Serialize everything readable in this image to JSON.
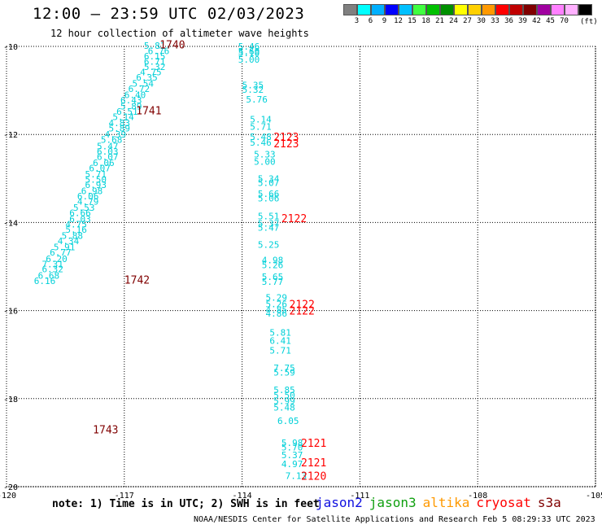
{
  "header": {
    "title": "12:00 — 23:59 UTC 02/03/2023",
    "subtitle": "12 hour collection of altimeter wave heights"
  },
  "legend": {
    "colors": [
      "#808080",
      "#00ffff",
      "#00b0ff",
      "#0000ff",
      "#00c0ff",
      "#40ff40",
      "#00c000",
      "#009000",
      "#ffff00",
      "#ffd000",
      "#ff9900",
      "#ff0000",
      "#c00000",
      "#800000",
      "#a000a0",
      "#ff80ff",
      "#ffb0ff",
      "#000000"
    ],
    "labels": [
      "3",
      "6",
      "9",
      "12",
      "15",
      "18",
      "21",
      "24",
      "27",
      "30",
      "33",
      "36",
      "39",
      "42",
      "45",
      "70"
    ],
    "unit": "(ft)"
  },
  "axes": {
    "x_ticks": [
      "-120",
      "-117",
      "-114",
      "-111",
      "-108",
      "-105"
    ],
    "y_ticks": [
      "-10",
      "-12",
      "-14",
      "-16",
      "-18",
      "-20"
    ]
  },
  "map_data": {
    "x_range": [
      -120,
      -105
    ],
    "y_range": [
      -20,
      -10
    ],
    "passes": [
      {
        "id": "1740",
        "color": "#800000",
        "lon": -116.1,
        "lat": -9.95
      },
      {
        "id": "1741",
        "color": "#800000",
        "lon": -116.7,
        "lat": -11.45
      },
      {
        "id": "1742",
        "color": "#800000",
        "lon": -117.0,
        "lat": -15.3
      },
      {
        "id": "1743",
        "color": "#800000",
        "lon": -117.8,
        "lat": -18.7
      },
      {
        "id": "2123",
        "color": "#ff0000",
        "lon": -113.2,
        "lat": -12.05
      },
      {
        "id": "2123",
        "color": "#ff0000",
        "lon": -113.2,
        "lat": -12.2
      },
      {
        "id": "2122",
        "color": "#ff0000",
        "lon": -113.0,
        "lat": -13.9
      },
      {
        "id": "2122",
        "color": "#ff0000",
        "lon": -112.8,
        "lat": -15.85
      },
      {
        "id": "2122",
        "color": "#ff0000",
        "lon": -112.8,
        "lat": -16.0
      },
      {
        "id": "2121",
        "color": "#ff0000",
        "lon": -112.5,
        "lat": -19.0
      },
      {
        "id": "2121",
        "color": "#ff0000",
        "lon": -112.5,
        "lat": -19.45
      },
      {
        "id": "2120",
        "color": "#ff0000",
        "lon": -112.5,
        "lat": -19.75
      }
    ],
    "track_a": [
      [
        "5.81",
        -116.5,
        -9.98
      ],
      [
        "6.76",
        -116.4,
        -10.1
      ],
      [
        "6.15",
        -116.5,
        -10.22
      ],
      [
        "6.71",
        -116.5,
        -10.34
      ],
      [
        "5.32",
        -116.5,
        -10.46
      ],
      [
        "4.75",
        -116.6,
        -10.58
      ],
      [
        "6.35",
        -116.7,
        -10.7
      ],
      [
        "5.54",
        -116.8,
        -10.84
      ],
      [
        "6.72",
        -116.9,
        -10.96
      ],
      [
        "6.40",
        -117.0,
        -11.1
      ],
      [
        "6.43",
        -117.1,
        -11.22
      ],
      [
        "5.89",
        -117.1,
        -11.36
      ],
      [
        "6.51",
        -117.2,
        -11.48
      ],
      [
        "5.14",
        -117.3,
        -11.6
      ],
      [
        "4.83",
        -117.4,
        -11.74
      ],
      [
        "5.89",
        -117.4,
        -11.86
      ],
      [
        "4.39",
        -117.5,
        -12.0
      ],
      [
        "5.68",
        -117.6,
        -12.12
      ],
      [
        "5.47",
        -117.7,
        -12.26
      ],
      [
        "6.03",
        -117.7,
        -12.38
      ],
      [
        "6.07",
        -117.7,
        -12.5
      ],
      [
        "6.06",
        -117.8,
        -12.64
      ],
      [
        "6.07",
        -117.9,
        -12.76
      ],
      [
        "5.71",
        -118.0,
        -12.9
      ],
      [
        "5.50",
        -118.0,
        -13.02
      ],
      [
        "6.93",
        -118.0,
        -13.14
      ],
      [
        "6.98",
        -118.1,
        -13.28
      ],
      [
        "6.06",
        -118.2,
        -13.4
      ],
      [
        "4.79",
        -118.2,
        -13.52
      ],
      [
        "5.53",
        -118.3,
        -13.66
      ],
      [
        "6.66",
        -118.4,
        -13.78
      ],
      [
        "6.03",
        -118.4,
        -13.92
      ],
      [
        "4.75",
        -118.5,
        -14.04
      ],
      [
        "5.16",
        -118.5,
        -14.16
      ],
      [
        "5.88",
        -118.6,
        -14.3
      ],
      [
        "4.34",
        -118.7,
        -14.42
      ],
      [
        "5.91",
        -118.8,
        -14.56
      ],
      [
        "6.77",
        -118.9,
        -14.68
      ],
      [
        "6.20",
        -119.0,
        -14.82
      ],
      [
        "7.31",
        -119.1,
        -14.94
      ],
      [
        "6.32",
        -119.1,
        -15.06
      ],
      [
        "6.68",
        -119.2,
        -15.2
      ],
      [
        "6.16",
        -119.3,
        -15.32
      ]
    ],
    "track_b": [
      [
        "5.46",
        -114.1,
        -10.0
      ],
      [
        "5.60",
        -114.1,
        -10.11
      ],
      [
        "5.10",
        -114.1,
        -10.15
      ],
      [
        "5.00",
        -114.1,
        -10.3
      ],
      [
        "5.35",
        -114.0,
        -10.88
      ],
      [
        "5.32",
        -114.0,
        -10.98
      ],
      [
        "5.76",
        -113.9,
        -11.2
      ],
      [
        "5.14",
        -113.8,
        -11.65
      ],
      [
        "5.71",
        -113.8,
        -11.82
      ],
      [
        "5.48",
        -113.8,
        -12.05
      ],
      [
        "5.46",
        -113.8,
        -12.18
      ],
      [
        "5.33",
        -113.7,
        -12.45
      ],
      [
        "5.00",
        -113.7,
        -12.62
      ],
      [
        "5.34",
        -113.6,
        -13.0
      ],
      [
        "5.07",
        -113.6,
        -13.1
      ],
      [
        "5.66",
        -113.6,
        -13.35
      ],
      [
        "5.06",
        -113.6,
        -13.45
      ],
      [
        "5.51",
        -113.6,
        -13.85
      ],
      [
        "5.37",
        -113.6,
        -14.02
      ],
      [
        "5.47",
        -113.6,
        -14.11
      ],
      [
        "5.25",
        -113.6,
        -14.5
      ],
      [
        "4.98",
        -113.5,
        -14.85
      ],
      [
        "5.26",
        -113.5,
        -14.96
      ],
      [
        "5.65",
        -113.5,
        -15.23
      ],
      [
        "5.77",
        -113.5,
        -15.34
      ],
      [
        "5.29",
        -113.4,
        -15.7
      ],
      [
        "5.26",
        -113.4,
        -15.85
      ],
      [
        "4.85",
        -113.4,
        -15.98
      ],
      [
        "4.86",
        -113.4,
        -16.06
      ],
      [
        "5.81",
        -113.3,
        -16.5
      ],
      [
        "6.41",
        -113.3,
        -16.68
      ],
      [
        "5.71",
        -113.3,
        -16.9
      ],
      [
        "7.75",
        -113.2,
        -17.3
      ],
      [
        "5.59",
        -113.2,
        -17.4
      ],
      [
        "5.85",
        -113.2,
        -17.8
      ],
      [
        "5.50",
        -113.2,
        -17.92
      ],
      [
        "5.99",
        -113.2,
        -18.05
      ],
      [
        "5.48",
        -113.2,
        -18.2
      ],
      [
        "6.05",
        -113.1,
        -18.5
      ],
      [
        "5.98",
        -113.0,
        -19.0
      ],
      [
        "5.70",
        -113.0,
        -19.1
      ],
      [
        "5.37",
        -113.0,
        -19.28
      ],
      [
        "4.97",
        -113.0,
        -19.48
      ],
      [
        "7.13",
        -112.9,
        -19.75
      ]
    ]
  },
  "note": "note:  1) Time is in UTC; 2) SWH is in feet",
  "satellites": [
    {
      "name": "jason2",
      "color": "#1010e0"
    },
    {
      "name": "jason3",
      "color": "#10a010"
    },
    {
      "name": "altika",
      "color": "#ff9900"
    },
    {
      "name": "cryosat",
      "color": "#ff0000"
    },
    {
      "name": "s3a",
      "color": "#800000"
    }
  ],
  "footer": "NOAA/NESDIS Center for Satellite Applications and Research   Feb  5 08:29:33 UTC 2023"
}
